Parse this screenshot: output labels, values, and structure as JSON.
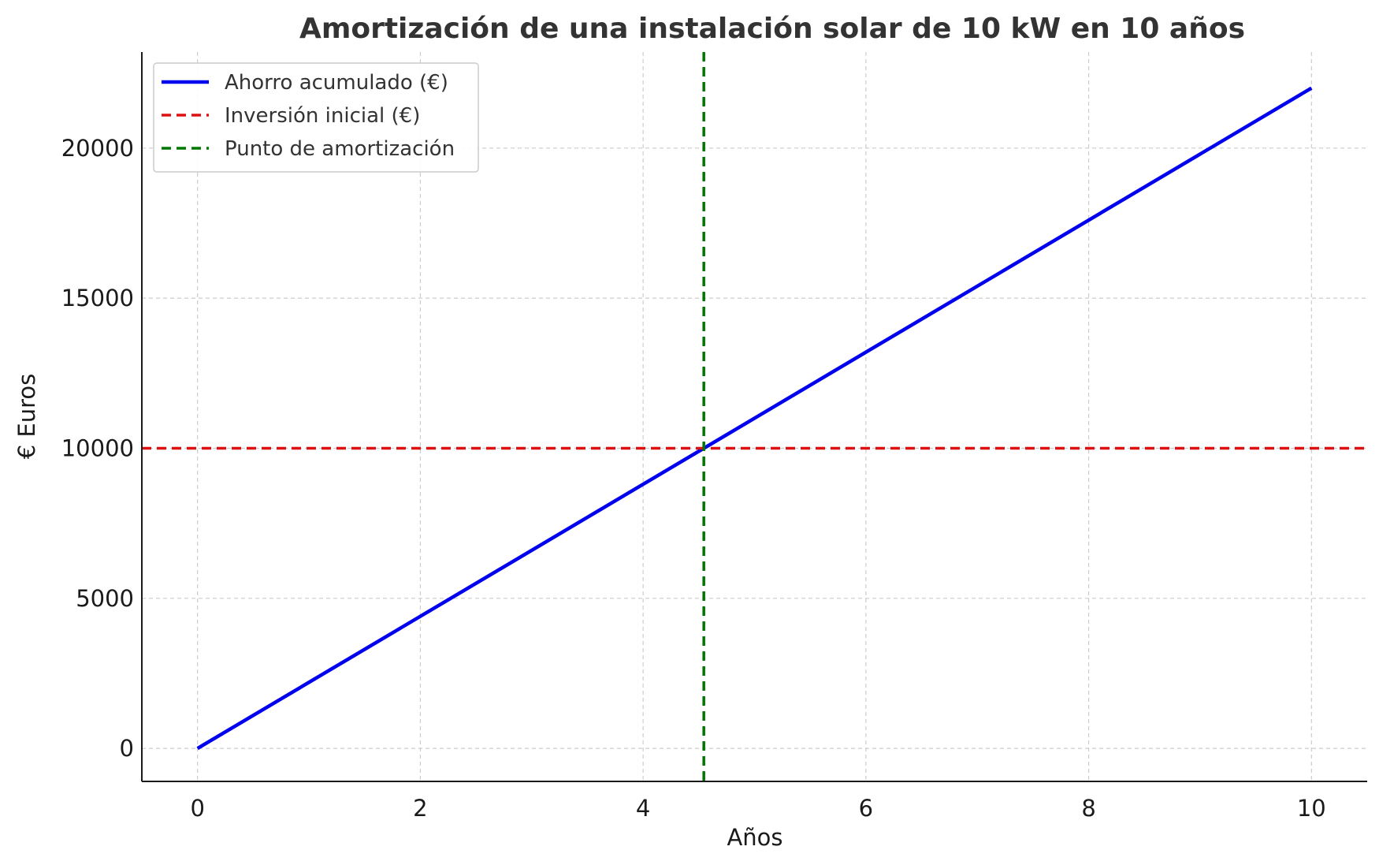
{
  "chart_data": {
    "type": "line",
    "title": "Amortización de una instalación solar de 10 kW en 10 años",
    "xlabel": "Años",
    "ylabel": "€ Euros",
    "xlim": [
      -0.5,
      10.5
    ],
    "ylim": [
      -1100,
      23200
    ],
    "xticks": [
      0,
      2,
      4,
      6,
      8,
      10
    ],
    "yticks": [
      0,
      5000,
      10000,
      15000,
      20000
    ],
    "grid": true,
    "legend_position": "upper-left",
    "series": [
      {
        "name": "Ahorro acumulado (€)",
        "kind": "line",
        "style": "solid",
        "color": "#0000ee",
        "x": [
          0,
          10
        ],
        "y": [
          0,
          22000
        ]
      },
      {
        "name": "Inversión inicial (€)",
        "kind": "hline",
        "style": "dashed",
        "color": "#dd1111",
        "y": 10000
      },
      {
        "name": "Punto de amortización",
        "kind": "vline",
        "style": "dashed",
        "color": "#007700",
        "x": 4.545
      }
    ]
  }
}
